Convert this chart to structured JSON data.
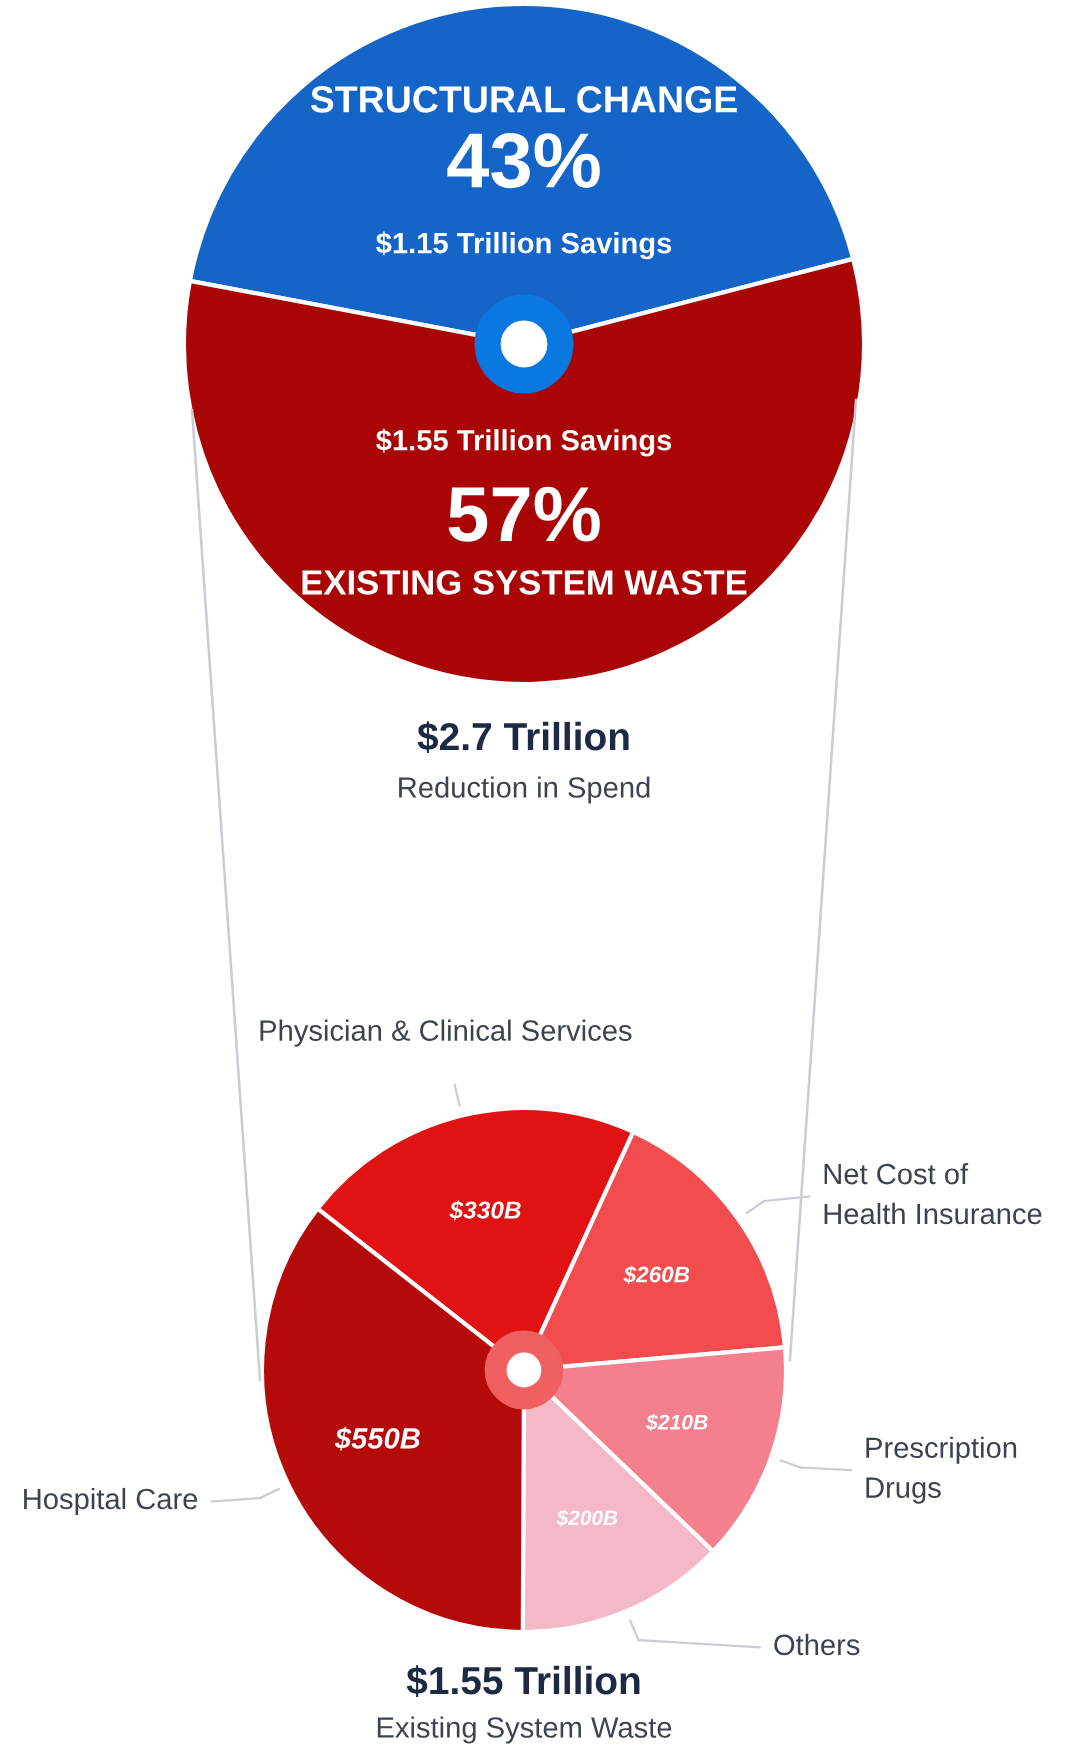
{
  "chart_data": [
    {
      "type": "pie",
      "title": "$2.7 Trillion",
      "subtitle": "Reduction in Spend",
      "categories": [
        "STRUCTURAL CHANGE",
        "EXISTING SYSTEM WASTE"
      ],
      "values": [
        43,
        57
      ],
      "colors": [
        "#1565c8",
        "#aa0505"
      ],
      "value_labels": [
        "43%",
        "57%"
      ],
      "annotations": [
        "$1.15 Trillion Savings",
        "$1.55 Trillion Savings"
      ]
    },
    {
      "type": "pie",
      "title": "$1.55 Trillion",
      "subtitle": "Existing System Waste",
      "categories": [
        "Physician & Clinical Services",
        "Net Cost of\nHealth Insurance",
        "Prescription\nDrugs",
        "Others",
        "Hospital Care"
      ],
      "values": [
        330,
        260,
        210,
        200,
        550
      ],
      "colors": [
        "#e01212",
        "#f24c4f",
        "#f4808e",
        "#f4b8c6",
        "#b50a0a"
      ],
      "value_labels": [
        "$330B",
        "$260B",
        "$210B",
        "$200B",
        "$550B"
      ]
    }
  ]
}
